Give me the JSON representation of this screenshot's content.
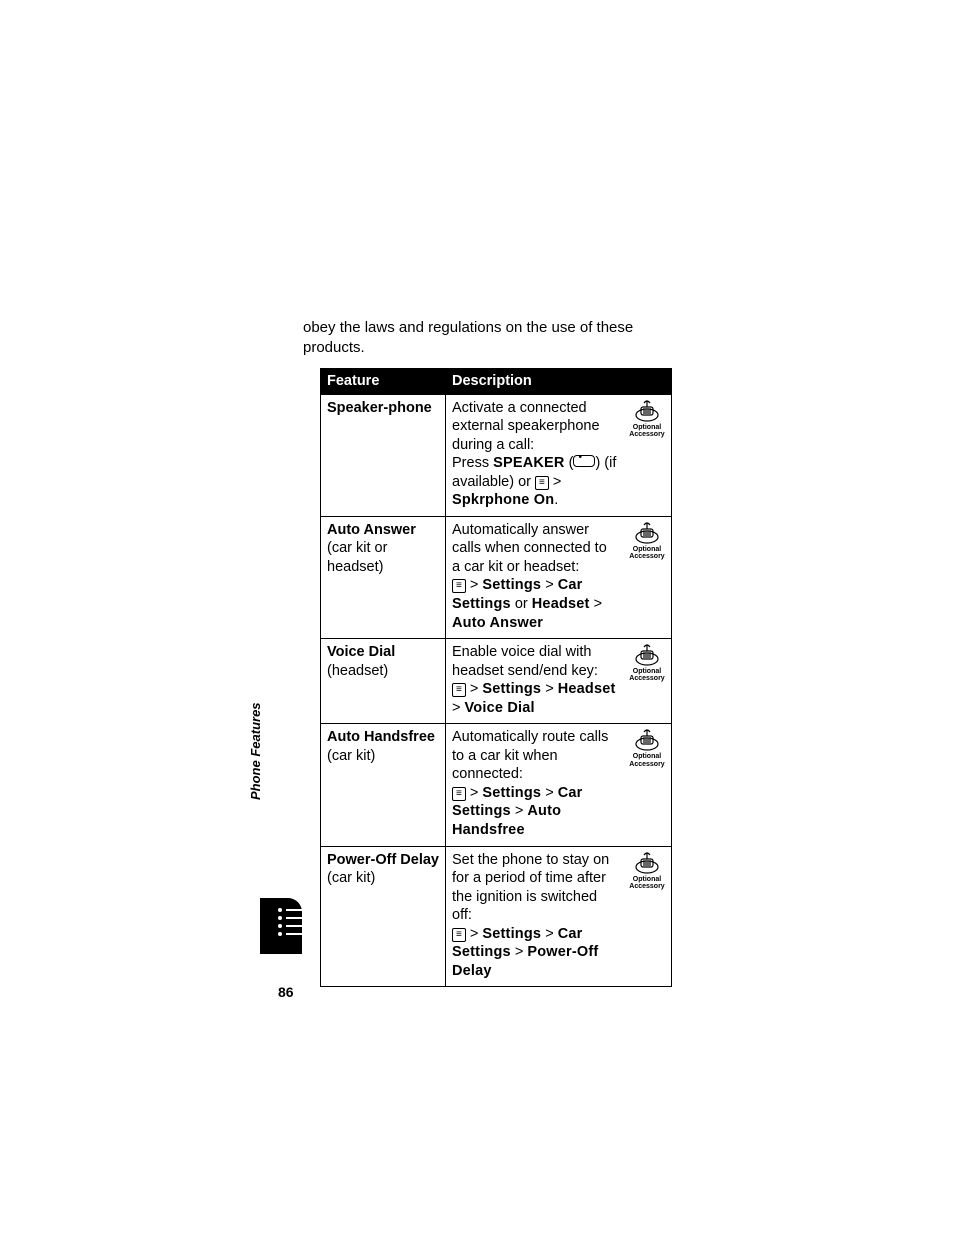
{
  "intro_text": "obey the laws and regulations on the use of these products.",
  "side_label": "Phone Features",
  "page_number": "86",
  "headers": {
    "feature": "Feature",
    "description": "Description"
  },
  "menu_glyph": "≡",
  "accessory_label1": "Optional",
  "accessory_label2": "Accessory",
  "rows": [
    {
      "feature_bold": "Speaker-phone",
      "feature_plain": "",
      "desc_lines": [
        {
          "t": "Activate a connected external speakerphone during a call:"
        },
        {
          "t": "Press ",
          "after_cond": "SPEAKER",
          "after_plain": " (",
          "softkey": true,
          "after2": ") (if available) or ",
          "menukey": true,
          "after3": " > ",
          "after_cond2": "Spkrphone On",
          "after4": "."
        }
      ]
    },
    {
      "feature_bold": "Auto Answer",
      "feature_plain": " (car kit or headset)",
      "desc_lines": [
        {
          "t": "Automatically answer calls when connected to a car kit or headset:"
        },
        {
          "menukey": true,
          "after3": " > ",
          "after_cond2": "Settings",
          "after4": " > ",
          "after_cond3": "Car Settings",
          "after5": " or ",
          "after_cond4": "Headset",
          "after6": " > ",
          "after_cond5": "Auto Answer"
        }
      ]
    },
    {
      "feature_bold": "Voice Dial",
      "feature_plain": " (headset)",
      "desc_lines": [
        {
          "t": "Enable voice dial with headset send/end key:"
        },
        {
          "menukey": true,
          "after3": " > ",
          "after_cond2": "Settings",
          "after4": " > ",
          "after_cond3": "Headset",
          "after5": " > ",
          "after_cond4": "Voice Dial"
        }
      ]
    },
    {
      "feature_bold": "Auto Handsfree",
      "feature_plain": " (car kit)",
      "desc_lines": [
        {
          "t": "Automatically route calls to a car kit when connected:"
        },
        {
          "menukey": true,
          "after3": " > ",
          "after_cond2": "Settings",
          "after4": " > ",
          "after_cond3": "Car Settings",
          "after5": " > ",
          "after_cond4": "Auto Handsfree"
        }
      ]
    },
    {
      "feature_bold": "Power-Off Delay",
      "feature_plain": " (car kit)",
      "desc_lines": [
        {
          "t": "Set the phone to stay on for a period of time after the ignition is switched off:"
        },
        {
          "menukey": true,
          "after3": " > ",
          "after_cond2": "Settings",
          "after4": " > ",
          "after_cond3": "Car Settings",
          "after5": " > ",
          "after_cond4": "Power-Off Delay"
        }
      ]
    }
  ]
}
